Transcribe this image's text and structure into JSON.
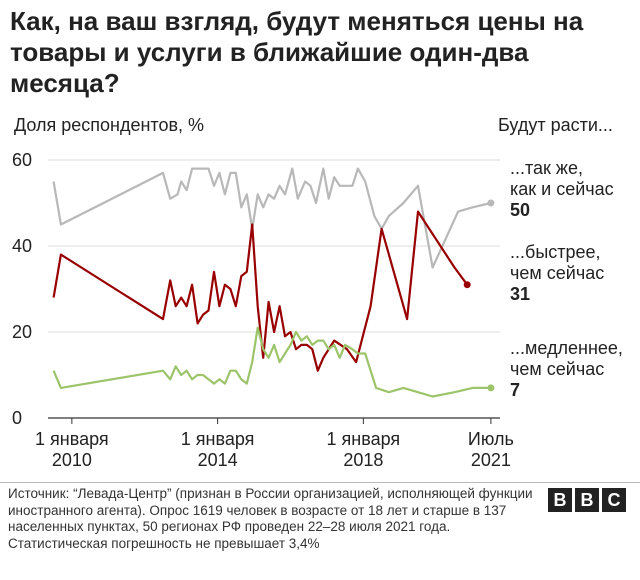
{
  "title": "Как, на ваш взгляд, будут меняться цены на товары и услуги в ближайшие один-два месяца?",
  "source": "Источник: “Левада-Центр” (признан в России организацией, исполняющей функции иностранного агента). Опрос 1619 человек в возрасте от 18 лет и старше в 137 населенных пунктах, 50 регионах РФ проведен 22–28 июля 2021 года. Статистическая погрешность не превышает 3,4%",
  "logo": {
    "letters": [
      "B",
      "B",
      "C"
    ]
  },
  "chart_data": {
    "type": "line",
    "ylabel": "Доля респондентов, %",
    "legend_header": "Будут расти...",
    "ylim": [
      0,
      60
    ],
    "yticks": [
      0,
      20,
      40,
      60
    ],
    "grid": true,
    "xlim": [
      2009.4,
      2021.75
    ],
    "xticks": [
      {
        "x": 2010.0,
        "label": [
          "1 января",
          "2010"
        ]
      },
      {
        "x": 2014.0,
        "label": [
          "1 января",
          "2014"
        ]
      },
      {
        "x": 2018.0,
        "label": [
          "1 января",
          "2018"
        ]
      },
      {
        "x": 2021.5,
        "label": [
          "Июль",
          "2021"
        ]
      }
    ],
    "series": [
      {
        "name": "...так же, как и сейчас",
        "label_lines": [
          "...так же,",
          "как и сейчас"
        ],
        "end_value": "50",
        "color": "#b8b8b8",
        "points": [
          [
            2009.5,
            55
          ],
          [
            2009.7,
            45
          ],
          [
            2012.5,
            57
          ],
          [
            2012.7,
            51
          ],
          [
            2012.9,
            52
          ],
          [
            2013.0,
            55
          ],
          [
            2013.15,
            53
          ],
          [
            2013.3,
            58
          ],
          [
            2013.45,
            58
          ],
          [
            2013.6,
            58
          ],
          [
            2013.75,
            58
          ],
          [
            2013.9,
            54
          ],
          [
            2014.05,
            57
          ],
          [
            2014.2,
            52
          ],
          [
            2014.35,
            57
          ],
          [
            2014.5,
            57
          ],
          [
            2014.65,
            49
          ],
          [
            2014.8,
            52
          ],
          [
            2014.95,
            44
          ],
          [
            2015.1,
            52
          ],
          [
            2015.25,
            49
          ],
          [
            2015.4,
            52
          ],
          [
            2015.55,
            51
          ],
          [
            2015.7,
            54
          ],
          [
            2015.85,
            52
          ],
          [
            2016.05,
            58
          ],
          [
            2016.2,
            51
          ],
          [
            2016.4,
            55
          ],
          [
            2016.55,
            54
          ],
          [
            2016.7,
            50
          ],
          [
            2016.9,
            58
          ],
          [
            2017.05,
            51
          ],
          [
            2017.2,
            56
          ],
          [
            2017.35,
            54
          ],
          [
            2017.5,
            54
          ],
          [
            2017.7,
            54
          ],
          [
            2017.85,
            58
          ],
          [
            2018.05,
            55
          ],
          [
            2018.3,
            47
          ],
          [
            2018.5,
            44
          ],
          [
            2018.7,
            47
          ],
          [
            2019.1,
            50
          ],
          [
            2019.5,
            54
          ],
          [
            2019.9,
            35
          ],
          [
            2020.6,
            48
          ],
          [
            2021.0,
            49
          ],
          [
            2021.5,
            50
          ]
        ]
      },
      {
        "name": "...быстрее, чем сейчас",
        "label_lines": [
          "...быстрее,",
          "чем сейчас"
        ],
        "end_value": "31",
        "color": "#990000",
        "points": [
          [
            2009.5,
            28
          ],
          [
            2009.7,
            38
          ],
          [
            2012.5,
            23
          ],
          [
            2012.7,
            32
          ],
          [
            2012.85,
            26
          ],
          [
            2013.0,
            28
          ],
          [
            2013.15,
            26
          ],
          [
            2013.3,
            31
          ],
          [
            2013.45,
            22
          ],
          [
            2013.6,
            24
          ],
          [
            2013.75,
            25
          ],
          [
            2013.9,
            34
          ],
          [
            2014.05,
            26
          ],
          [
            2014.2,
            31
          ],
          [
            2014.35,
            30
          ],
          [
            2014.5,
            26
          ],
          [
            2014.65,
            33
          ],
          [
            2014.8,
            34
          ],
          [
            2014.95,
            45
          ],
          [
            2015.1,
            26
          ],
          [
            2015.25,
            14
          ],
          [
            2015.4,
            27
          ],
          [
            2015.55,
            20
          ],
          [
            2015.7,
            26
          ],
          [
            2015.85,
            19
          ],
          [
            2016.0,
            20
          ],
          [
            2016.15,
            16
          ],
          [
            2016.3,
            17
          ],
          [
            2016.45,
            17
          ],
          [
            2016.6,
            16
          ],
          [
            2016.75,
            11
          ],
          [
            2016.9,
            14
          ],
          [
            2017.2,
            18
          ],
          [
            2017.55,
            16
          ],
          [
            2017.8,
            13
          ],
          [
            2018.2,
            26
          ],
          [
            2018.5,
            44
          ],
          [
            2018.7,
            38
          ],
          [
            2019.2,
            23
          ],
          [
            2019.5,
            48
          ],
          [
            2020.5,
            35
          ],
          [
            2020.85,
            31
          ]
        ]
      },
      {
        "name": "...медленнее, чем сейчас",
        "label_lines": [
          "...медленнее,",
          "чем сейчас"
        ],
        "end_value": "7",
        "color": "#9cc46a",
        "points": [
          [
            2009.5,
            11
          ],
          [
            2009.7,
            7
          ],
          [
            2012.5,
            11
          ],
          [
            2012.7,
            9
          ],
          [
            2012.85,
            12
          ],
          [
            2013.0,
            10
          ],
          [
            2013.15,
            11
          ],
          [
            2013.3,
            9
          ],
          [
            2013.45,
            10
          ],
          [
            2013.6,
            10
          ],
          [
            2013.75,
            9
          ],
          [
            2013.9,
            8
          ],
          [
            2014.05,
            9
          ],
          [
            2014.2,
            8
          ],
          [
            2014.35,
            11
          ],
          [
            2014.5,
            11
          ],
          [
            2014.65,
            9
          ],
          [
            2014.8,
            8
          ],
          [
            2014.95,
            13
          ],
          [
            2015.1,
            21
          ],
          [
            2015.25,
            16
          ],
          [
            2015.4,
            14
          ],
          [
            2015.55,
            17
          ],
          [
            2015.7,
            13
          ],
          [
            2015.85,
            15
          ],
          [
            2016.0,
            17
          ],
          [
            2016.15,
            20
          ],
          [
            2016.3,
            18
          ],
          [
            2016.45,
            19
          ],
          [
            2016.6,
            17
          ],
          [
            2016.75,
            18
          ],
          [
            2016.9,
            18
          ],
          [
            2017.05,
            16
          ],
          [
            2017.2,
            17
          ],
          [
            2017.35,
            14
          ],
          [
            2017.5,
            17
          ],
          [
            2017.7,
            16
          ],
          [
            2017.85,
            15
          ],
          [
            2018.05,
            15
          ],
          [
            2018.35,
            7
          ],
          [
            2018.7,
            6
          ],
          [
            2019.1,
            7
          ],
          [
            2019.5,
            6
          ],
          [
            2019.9,
            5
          ],
          [
            2020.5,
            6
          ],
          [
            2021.0,
            7
          ],
          [
            2021.5,
            7
          ]
        ]
      }
    ]
  }
}
